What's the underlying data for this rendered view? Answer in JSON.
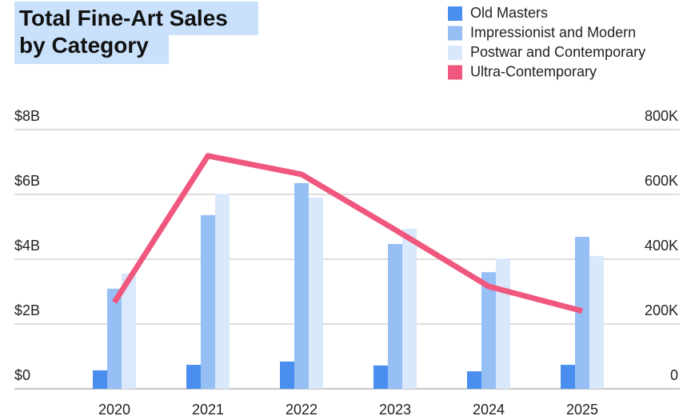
{
  "chart_data": {
    "type": "bar",
    "title": [
      "Total Fine-Art Sales",
      "by Category"
    ],
    "categories": [
      "2020",
      "2021",
      "2022",
      "2023",
      "2024",
      "2025"
    ],
    "series": [
      {
        "name": "Old Masters",
        "color": "#4a8fef",
        "values": [
          0.57,
          0.74,
          0.84,
          0.72,
          0.54,
          0.74
        ]
      },
      {
        "name": "Impressionist and Modern",
        "color": "#96bff5",
        "values": [
          3.09,
          5.36,
          6.35,
          4.47,
          3.6,
          4.69
        ]
      },
      {
        "name": "Postwar and Contemporary",
        "color": "#d9e8fb",
        "values": [
          3.56,
          6.02,
          5.9,
          4.94,
          4.02,
          4.1
        ]
      },
      {
        "name": "Ultra-Contemporary",
        "color": "#f0577f",
        "type": "line",
        "axis": "y2",
        "values": [
          267,
          719,
          662,
          491,
          316,
          240
        ]
      }
    ],
    "ylim": [
      0,
      8
    ],
    "yticks": [
      {
        "value": 0,
        "label": "$0"
      },
      {
        "value": 2,
        "label": "$2B"
      },
      {
        "value": 4,
        "label": "$4B"
      },
      {
        "value": 6,
        "label": "$6B"
      },
      {
        "value": 8,
        "label": "$8B"
      }
    ],
    "y2lim": [
      0,
      800
    ],
    "y2ticks": [
      0,
      {
        "value": 200,
        "label": "200K"
      },
      {
        "value": 400,
        "label": "400K"
      },
      {
        "value": 600,
        "label": "600K"
      },
      {
        "value": 800,
        "label": "800K"
      }
    ],
    "grid": true,
    "legend": "top-right"
  }
}
